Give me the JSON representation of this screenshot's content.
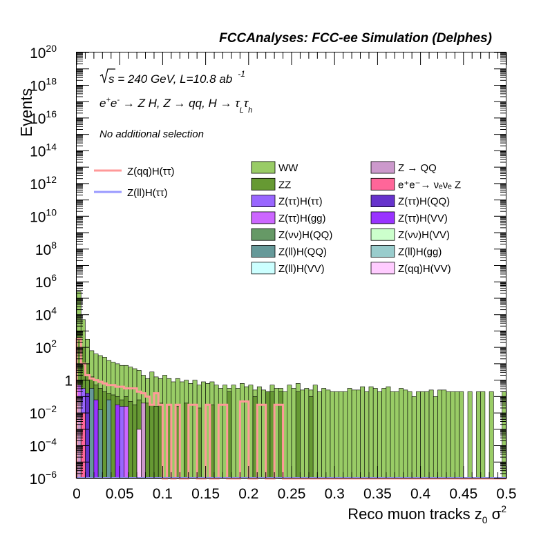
{
  "header": {
    "title": "FCCAnalyses: FCC-ee Simulation (Delphes)",
    "energy_sqrt": "s",
    "energy_text": " = 240 GeV, L=10.8 ab",
    "lumi_exp": "-1",
    "selection": "No additional selection"
  },
  "process": {
    "e": "e",
    "plus": "+",
    "minus": "-",
    "arrow1": " → Z H, Z  → qq, H  → τ",
    "sub1": "L",
    "tau2": "τ",
    "sub2": "h"
  },
  "colors": {
    "WW": "#99cc66",
    "ZZ": "#669933",
    "ZqqHtautau": "#ff9999",
    "ZllHtautau": "#9999ff",
    "ZQQ": "#cc99cc",
    "eeNuNuZ": "#ff6699",
    "ZtautauHtautau": "#9966ff",
    "ZtautauHQQ": "#6633cc",
    "ZtautauHgg": "#cc66ff",
    "ZtautauHVV": "#9933ff",
    "ZnunuHQQ": "#669966",
    "ZnunuHVV": "#ccffcc",
    "ZllHQQ": "#669999",
    "ZllHgg": "#99cccc",
    "ZllHVV": "#ccffff",
    "ZqqHVV": "#ffccff"
  },
  "legend": {
    "lines": [
      {
        "key": "ZqqHtautau",
        "label": "Z(qq)H(ττ)"
      },
      {
        "key": "ZllHtautau",
        "label": "Z(ll)H(ττ)"
      }
    ],
    "boxes": [
      {
        "key": "WW",
        "label": "WW"
      },
      {
        "key": "ZQQ",
        "label": "Z → QQ"
      },
      {
        "key": "ZZ",
        "label": "ZZ"
      },
      {
        "key": "eeNuNuZ",
        "label": "e⁺e⁻→ νₑνₑ Z"
      },
      {
        "key": "ZtautauHtautau",
        "label": "Z(ττ)H(ττ)"
      },
      {
        "key": "ZtautauHQQ",
        "label": "Z(ττ)H(QQ)"
      },
      {
        "key": "ZtautauHgg",
        "label": "Z(ττ)H(gg)"
      },
      {
        "key": "ZtautauHVV",
        "label": "Z(ττ)H(VV)"
      },
      {
        "key": "ZnunuHQQ",
        "label": "Z(νν)H(QQ)"
      },
      {
        "key": "ZnunuHVV",
        "label": "Z(νν)H(VV)"
      },
      {
        "key": "ZllHQQ",
        "label": "Z(ll)H(QQ)"
      },
      {
        "key": "ZllHgg",
        "label": "Z(ll)H(gg)"
      },
      {
        "key": "ZllHVV",
        "label": "Z(ll)H(VV)"
      },
      {
        "key": "ZqqHVV",
        "label": "Z(qq)H(VV)"
      }
    ]
  },
  "chart_data": {
    "type": "histogram",
    "title": "FCCAnalyses: FCC-ee Simulation (Delphes)",
    "xlabel": "Reco muon tracks z",
    "xlabel_sub": "0",
    "xlabel_tail": " σ",
    "xlabel_sup": "2",
    "ylabel": "Events",
    "xlim": [
      0,
      0.5
    ],
    "ylim": [
      1e-06,
      1e+20
    ],
    "log_y": true,
    "bin_width": 0.005,
    "xticks": [
      "0",
      "0.05",
      "0.1",
      "0.15",
      "0.2",
      "0.25",
      "0.3",
      "0.35",
      "0.4",
      "0.45",
      "0.5"
    ],
    "xtick_values": [
      0,
      0.05,
      0.1,
      0.15,
      0.2,
      0.25,
      0.3,
      0.35,
      0.4,
      0.45,
      0.5
    ],
    "yticks": [
      {
        "exp": -6,
        "base": "10",
        "sup": "−6"
      },
      {
        "exp": -4,
        "base": "10",
        "sup": "−4"
      },
      {
        "exp": -2,
        "base": "10",
        "sup": "−2"
      },
      {
        "exp": 0,
        "base": "1",
        "sup": ""
      },
      {
        "exp": 2,
        "base": "10",
        "sup": "2"
      },
      {
        "exp": 4,
        "base": "10",
        "sup": "4"
      },
      {
        "exp": 6,
        "base": "10",
        "sup": "6"
      },
      {
        "exp": 8,
        "base": "10",
        "sup": "8"
      },
      {
        "exp": 10,
        "base": "10",
        "sup": "10"
      },
      {
        "exp": 12,
        "base": "10",
        "sup": "12"
      },
      {
        "exp": 14,
        "base": "10",
        "sup": "14"
      },
      {
        "exp": 16,
        "base": "10",
        "sup": "16"
      },
      {
        "exp": 18,
        "base": "10",
        "sup": "18"
      },
      {
        "exp": 20,
        "base": "10",
        "sup": "20"
      }
    ],
    "stacked_total_log10": [
      5.4,
      3.7,
      2.5,
      1.8,
      1.6,
      1.5,
      1.4,
      1.2,
      1.1,
      1.0,
      0.9,
      0.9,
      0.8,
      0.7,
      0.6,
      0.3,
      0.1,
      0.5,
      0.2,
      0.1,
      0.3,
      0.1,
      -0.1,
      0.1,
      -0.1,
      0.0,
      -0.2,
      0.0,
      -0.3,
      -0.1,
      -0.2,
      -0.1,
      -0.3,
      -0.5,
      -0.3,
      -0.5,
      -0.3,
      -0.5,
      -0.2,
      -0.4,
      -0.3,
      -0.6,
      -0.4,
      -0.6,
      -0.7,
      -0.3,
      -0.5,
      -0.5,
      -0.7,
      -0.3,
      -0.5,
      -0.2,
      -0.6,
      -0.5,
      -0.6,
      -0.3,
      -0.7,
      -0.5,
      -0.6,
      -0.7,
      -0.7,
      -0.7,
      -0.7,
      -0.5,
      -0.6,
      -0.6,
      -0.4,
      -0.7,
      -0.4,
      -0.5,
      -0.7,
      -0.5,
      -0.4,
      -0.7,
      -0.7,
      -0.5,
      -0.6,
      -0.7,
      -1.0,
      -0.7,
      -0.7,
      -0.7,
      -0.6,
      -1.0,
      -0.6,
      -0.6,
      -0.7,
      -0.7,
      -0.7,
      -0.7,
      -6.0,
      -0.7,
      -6.0,
      -0.7,
      -0.7,
      -6.0,
      -0.7,
      -6.0,
      -6.0,
      -0.7
    ],
    "ZZ_log10": [
      3.0,
      2.0,
      1.0,
      0.2,
      -0.3,
      -0.5,
      -0.7,
      -0.8,
      -0.9,
      -1.0,
      -1.2,
      -1.0,
      -1.3,
      -1.5,
      -1.2,
      -1.5,
      -1.4,
      -1.5,
      -1.6,
      -1.4,
      -6.0,
      -1.5,
      -6.0,
      -1.6,
      -6.0,
      -1.4,
      -6.0,
      -6.0,
      -1.7,
      -6.0,
      -6.0,
      -1.5,
      -6.0,
      -6.0,
      -6.0,
      -0.7,
      -6.0,
      -6.0,
      -6.0,
      -6.0,
      -6.0,
      -1.0,
      -6.0,
      -6.0,
      -0.7,
      -0.7,
      -6.0,
      -0.7,
      -6.0,
      -6.0,
      -6.0,
      -0.7,
      -6.0,
      -6.0,
      -1.0,
      -6.0,
      -6.0,
      -6.0,
      -6.0,
      -6.0,
      -6.0,
      -6.0,
      -6.0,
      -6.0,
      -6.0,
      -6.0,
      -6.0,
      -6.0,
      -6.0,
      -6.0,
      -6.0,
      -6.0,
      -6.0,
      -6.0,
      -6.0,
      -6.0,
      -6.0,
      -6.0,
      -6.0,
      -6.0,
      -6.0,
      -6.0,
      -6.0,
      -6.0,
      -6.0,
      -6.0,
      -6.0,
      -6.0,
      -6.0,
      -6.0,
      -6.0,
      -6.0,
      -6.0,
      -6.0,
      -6.0,
      -6.0,
      -6.0,
      -6.0,
      -6.0,
      -6.0
    ],
    "ZqqHtautau_log10": [
      2.5,
      1.0,
      0.3,
      0.1,
      0.0,
      -0.1,
      -0.2,
      -0.3,
      -0.3,
      -0.4,
      -0.4,
      -0.5,
      -0.5,
      -0.5,
      -0.7,
      -0.8,
      -1.0,
      -1.5,
      -0.8,
      -1.5,
      -6.0,
      -1.5,
      -6.0,
      -1.5,
      -6.0,
      -6.0,
      -1.5,
      -1.5,
      -6.0,
      -6.0,
      -1.5,
      -6.0,
      -6.0,
      -1.5,
      -1.5,
      -6.0,
      -6.0,
      -6.0,
      -1.3,
      -1.3,
      -6.0,
      -6.0,
      -1.5,
      -1.5,
      -6.0,
      -6.0,
      -1.5,
      -1.5,
      -6.0,
      -6.0,
      -6.0,
      -6.0,
      -6.0,
      -6.0,
      -6.0,
      -6.0,
      -6.0,
      -6.0,
      -6.0,
      -6.0,
      -6.0,
      -6.0,
      -6.0,
      -6.0,
      -6.0,
      -6.0,
      -6.0,
      -6.0,
      -6.0,
      -6.0,
      -6.0,
      -6.0,
      -6.0,
      -6.0,
      -6.0,
      -6.0,
      -6.0,
      -6.0,
      -6.0,
      -6.0,
      -6.0,
      -6.0,
      -6.0,
      -6.0,
      -6.0,
      -6.0,
      -6.0,
      -6.0,
      -6.0,
      -6.0,
      -6.0,
      -6.0,
      -6.0,
      -6.0,
      -6.0,
      -6.0,
      -6.0,
      -6.0,
      -6.0,
      -6.0
    ]
  }
}
